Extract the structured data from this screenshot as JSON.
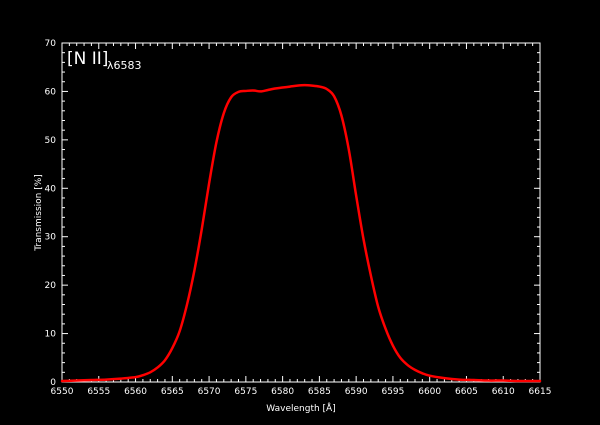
{
  "colors": {
    "background": "#000000",
    "axes": "#ffffff",
    "series": "#ff0000"
  },
  "chart_data": {
    "type": "line",
    "title": "",
    "xlabel": "Wavelength [Å]",
    "ylabel": "Transmission [%]",
    "xlim": [
      6550,
      6615
    ],
    "ylim": [
      0,
      70
    ],
    "x_ticks": [
      "6550",
      "6555",
      "6560",
      "6565",
      "6570",
      "6575",
      "6580",
      "6585",
      "6590",
      "6595",
      "6600",
      "6605",
      "6610",
      "6615"
    ],
    "y_ticks": [
      "0",
      "10",
      "20",
      "30",
      "40",
      "50",
      "60",
      "70"
    ],
    "grid": false,
    "annotation": {
      "main": "[N II]",
      "sub": "λ6583"
    },
    "series": [
      {
        "color": "#ff0000",
        "x": [
          6550,
          6552,
          6554,
          6556,
          6558,
          6560,
          6561,
          6562,
          6563,
          6564,
          6565,
          6566,
          6567,
          6568,
          6569,
          6570,
          6571,
          6572,
          6573,
          6574,
          6575,
          6576,
          6577,
          6578,
          6579,
          6580,
          6581,
          6582,
          6583,
          6584,
          6585,
          6586,
          6587,
          6588,
          6589,
          6590,
          6591,
          6592,
          6593,
          6594,
          6595,
          6596,
          6597,
          6598,
          6599,
          6600,
          6602,
          6604,
          6606,
          6608,
          6610,
          6612,
          6614,
          6615
        ],
        "y": [
          0.2,
          0.3,
          0.4,
          0.5,
          0.7,
          1.0,
          1.4,
          2.0,
          3.0,
          4.5,
          7.0,
          10.5,
          16.0,
          23.0,
          31.5,
          41.0,
          49.5,
          55.5,
          58.8,
          59.9,
          60.1,
          60.2,
          60.0,
          60.3,
          60.6,
          60.8,
          61.0,
          61.2,
          61.3,
          61.2,
          61.0,
          60.5,
          59.0,
          55.0,
          48.0,
          38.5,
          29.5,
          22.0,
          15.5,
          11.0,
          7.5,
          5.0,
          3.5,
          2.5,
          1.8,
          1.3,
          0.8,
          0.5,
          0.4,
          0.3,
          0.3,
          0.2,
          0.2,
          0.2
        ]
      }
    ]
  }
}
